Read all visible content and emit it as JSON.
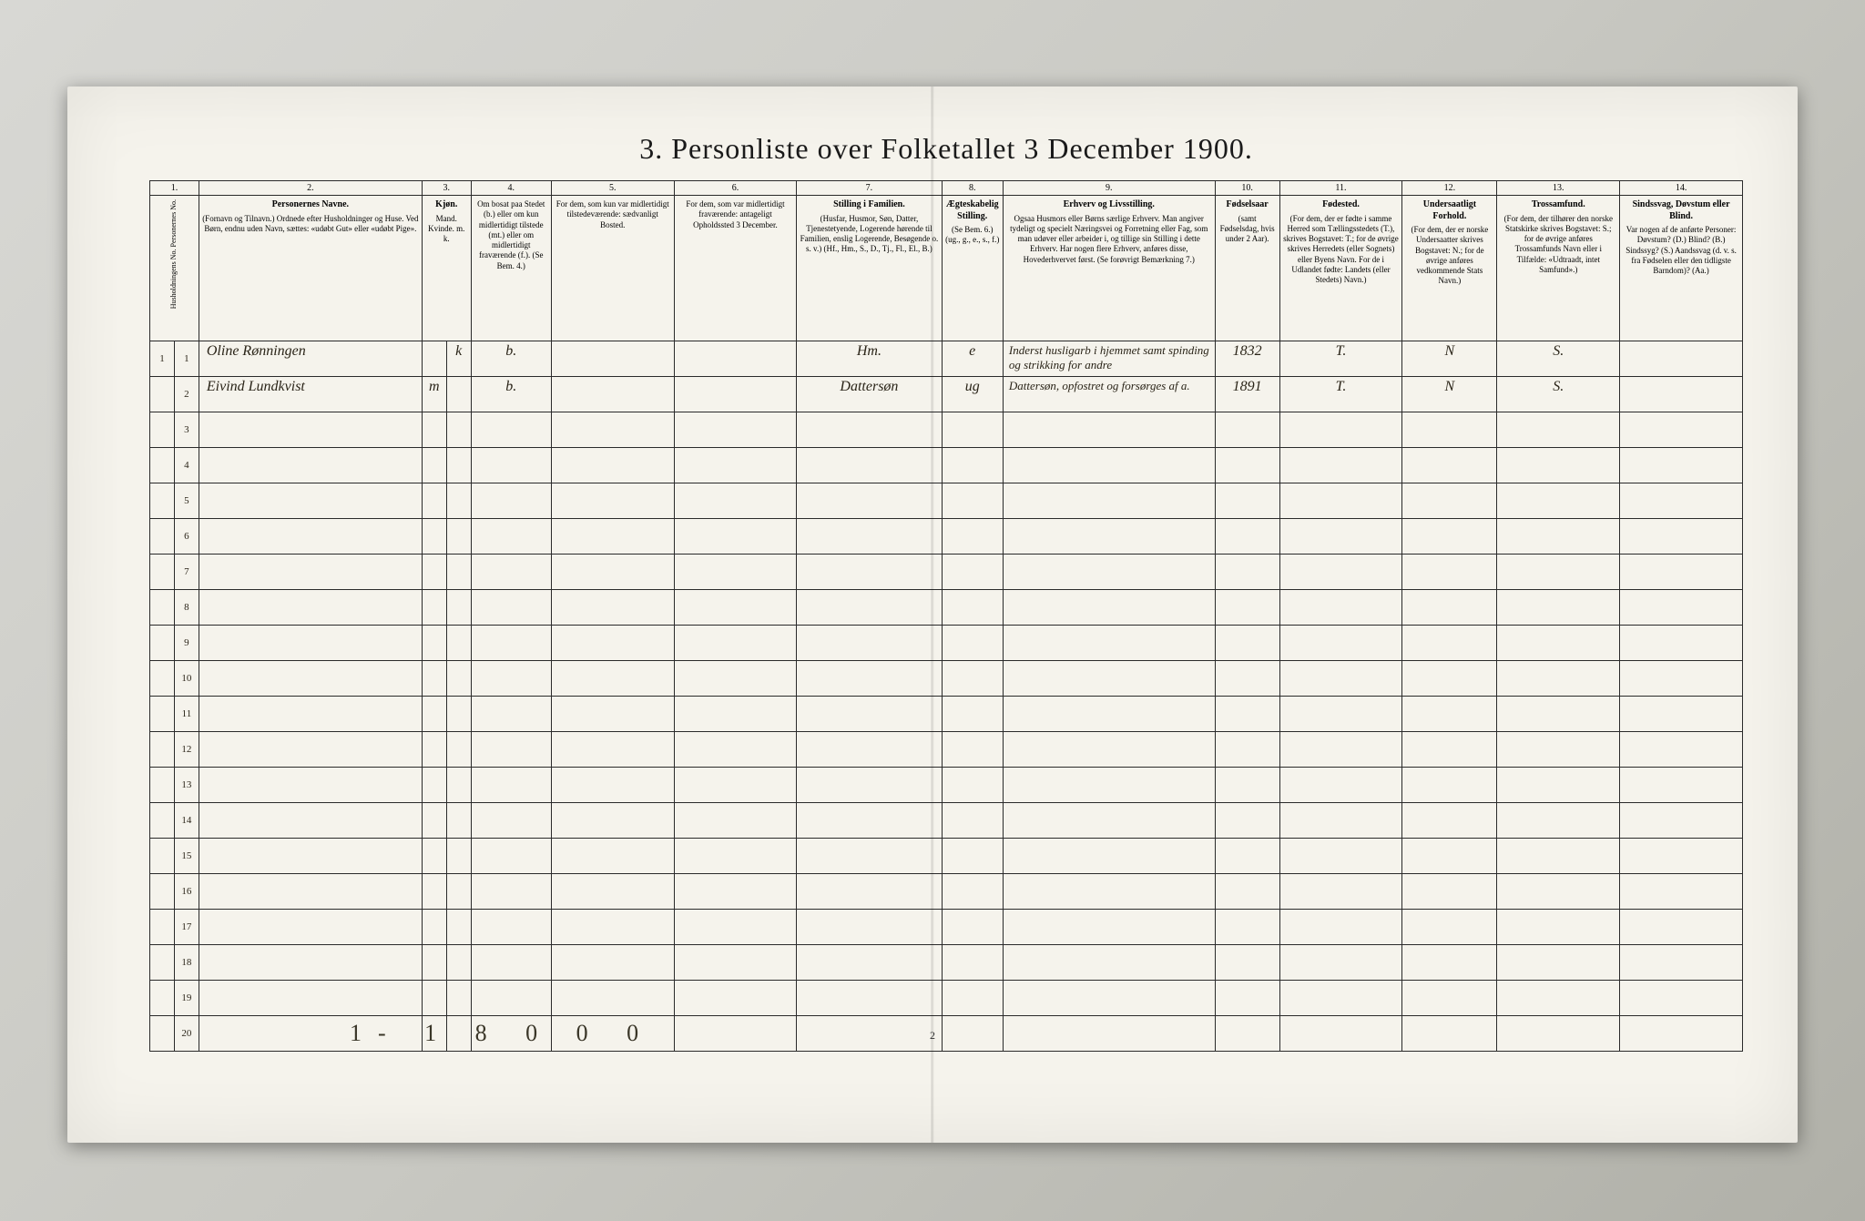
{
  "title": "3. Personliste over Folketallet 3 December 1900.",
  "page_number": "2",
  "footer_marks": "1- 1 8 0 0 0",
  "colors": {
    "paper": "#f5f3ec",
    "ink": "#1a1a1a",
    "border": "#2a2a2a",
    "handwriting": "#2a2418",
    "photo_bg": "#c8c8c2"
  },
  "columns": [
    {
      "num": "1.",
      "head_title": "",
      "head": "Husholdningens No.\nPersonernes No."
    },
    {
      "num": "2.",
      "head_title": "Personernes Navne.",
      "head": "(Fornavn og Tilnavn.)\nOrdnede efter Husholdninger og Huse.\nVed Børn, endnu uden Navn, sættes: «udøbt Gut» eller «udøbt Pige»."
    },
    {
      "num": "3.",
      "head_title": "Kjøn.",
      "head": "Mand.  Kvinde.\nm.     k."
    },
    {
      "num": "4.",
      "head_title": "",
      "head": "Om bosat paa Stedet (b.) eller om kun midlertidigt tilstede (mt.) eller om midlertidigt fraværende (f.). (Se Bem. 4.)"
    },
    {
      "num": "5.",
      "head_title": "",
      "head": "For dem, som kun var midlertidigt tilstedeværende:\nsædvanligt Bosted."
    },
    {
      "num": "6.",
      "head_title": "",
      "head": "For dem, som var midlertidigt fraværende:\nantageligt Opholdssted 3 December."
    },
    {
      "num": "7.",
      "head_title": "Stilling i Familien.",
      "head": "(Husfar, Husmor, Søn, Datter, Tjenestetyende, Logerende hørende til Familien, enslig Logerende, Besøgende o. s. v.)\n(Hf., Hm., S., D., Tj., Fl., El., B.)"
    },
    {
      "num": "8.",
      "head_title": "Ægteskabelig Stilling.",
      "head": "(Se Bem. 6.)\n(ug., g., e., s., f.)"
    },
    {
      "num": "9.",
      "head_title": "Erhverv og Livsstilling.",
      "head": "Ogsaa Husmors eller Børns særlige Erhverv. Man angiver tydeligt og specielt Næringsvei og Forretning eller Fag, som man udøver eller arbeider i, og tillige sin Stilling i dette Erhverv. Har nogen flere Erhverv, anføres disse, Hovederhvervet først.\n(Se forøvrigt Bemærkning 7.)"
    },
    {
      "num": "10.",
      "head_title": "Fødselsaar",
      "head": "(samt Fødselsdag, hvis under 2 Aar)."
    },
    {
      "num": "11.",
      "head_title": "Fødested.",
      "head": "(For dem, der er fødte i samme Herred som Tællingsstedets (T.), skrives Bogstavet: T.; for de øvrige skrives Herredets (eller Sognets) eller Byens Navn. For de i Udlandet fødte: Landets (eller Stedets) Navn.)"
    },
    {
      "num": "12.",
      "head_title": "Undersaatligt Forhold.",
      "head": "(For dem, der er norske Undersaatter skrives Bogstavet: N.; for de øvrige anføres vedkommende Stats Navn.)"
    },
    {
      "num": "13.",
      "head_title": "Trossamfund.",
      "head": "(For dem, der tilhører den norske Statskirke skrives Bogstavet: S.; for de øvrige anføres Trossamfunds Navn eller i Tilfælde: «Udtraadt, intet Samfund».)"
    },
    {
      "num": "14.",
      "head_title": "Sindssvag, Døvstum eller Blind.",
      "head": "Var nogen af de anførte Personer:\nDøvstum? (D.)\nBlind? (B.)\nSindssyg? (S.)\nAandssvag (d. v. s. fra Fødselen eller den tidligste Barndom)? (Aa.)"
    }
  ],
  "rows": [
    {
      "hh": "1",
      "pn": "1",
      "name": "Oline Rønningen",
      "m": "",
      "k": "k",
      "c4": "b.",
      "c5": "",
      "c6": "",
      "c7": "Hm.",
      "c8": "e",
      "c9": "Inderst husligarb i hjemmet samt spinding og strikking for andre",
      "c10": "1832",
      "c11": "T.",
      "c12": "N",
      "c13": "S.",
      "c14": ""
    },
    {
      "hh": "",
      "pn": "2",
      "name": "Eivind Lundkvist",
      "m": "m",
      "k": "",
      "c4": "b.",
      "c5": "",
      "c6": "",
      "c7": "Dattersøn",
      "c8": "ug",
      "c9": "Dattersøn, opfostret og forsørges af a.",
      "c10": "1891",
      "c11": "T.",
      "c12": "N",
      "c13": "S.",
      "c14": ""
    }
  ],
  "blank_rows": 18
}
